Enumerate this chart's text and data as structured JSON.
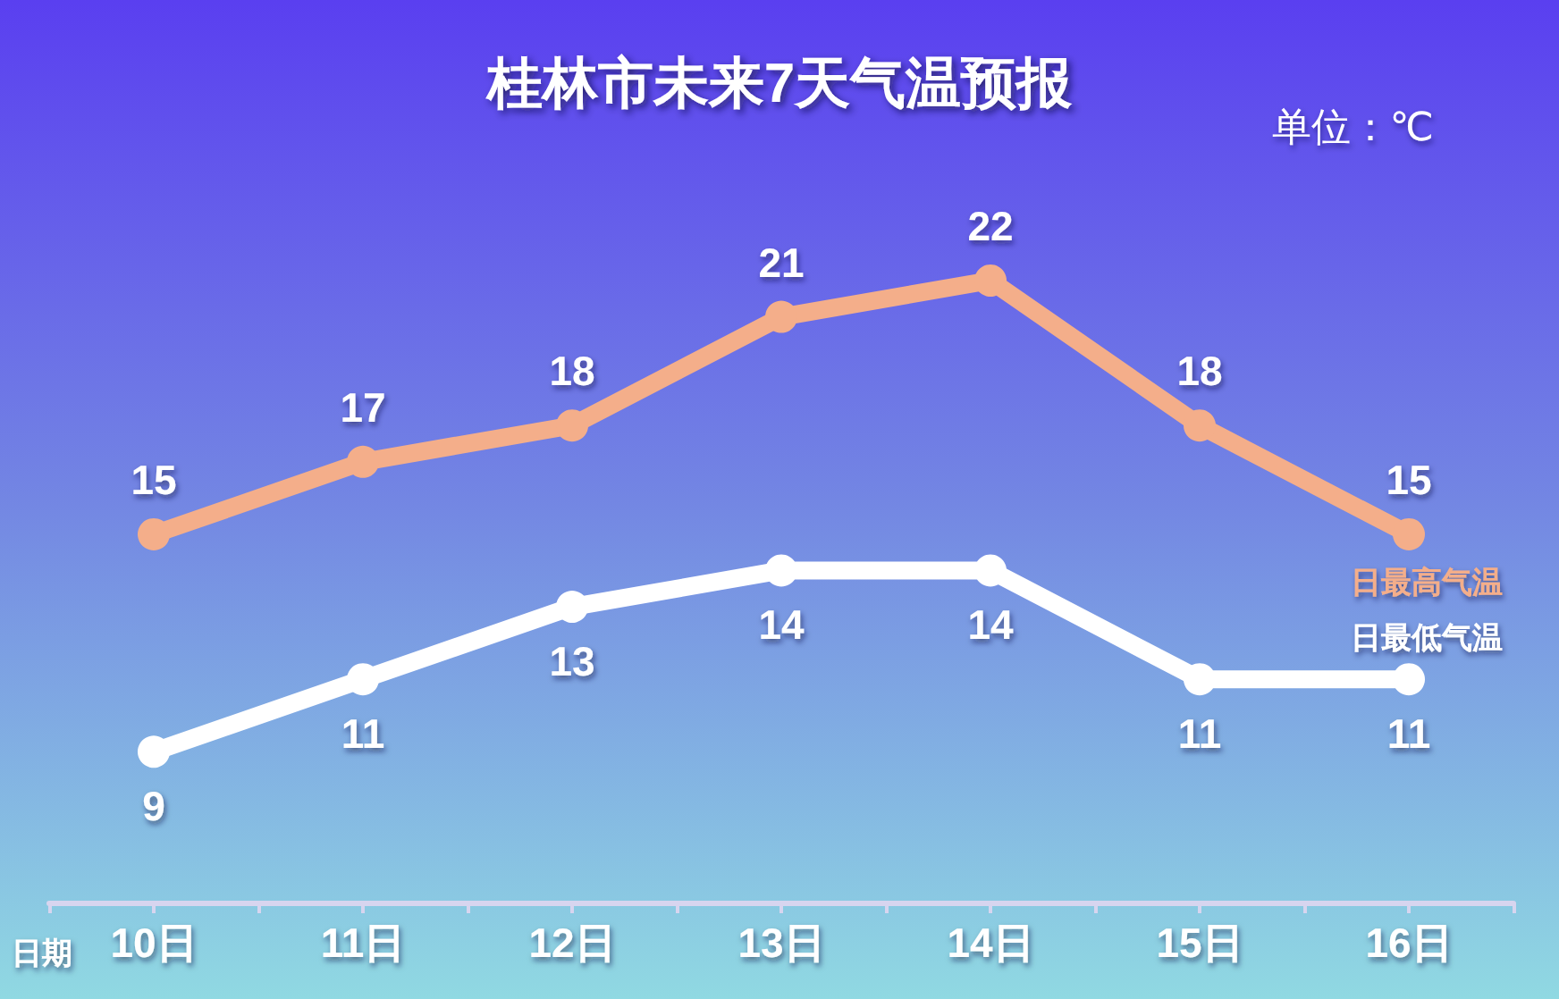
{
  "chart_data": {
    "type": "line",
    "title": "桂林市未来7天气温预报",
    "xlabel": "日期",
    "annotations": [
      "单位：℃"
    ],
    "categories": [
      "10日",
      "11日",
      "12日",
      "13日",
      "14日",
      "15日",
      "16日"
    ],
    "series": [
      {
        "name": "日最高气温",
        "color": "#f4ae8a",
        "values": [
          15,
          17,
          18,
          21,
          22,
          18,
          15
        ]
      },
      {
        "name": "日最低气温",
        "color": "#ffffff",
        "values": [
          9,
          11,
          13,
          14,
          14,
          11,
          11
        ]
      }
    ],
    "data_labels": true,
    "grid": false,
    "marker": "circle",
    "tick_labels": "x"
  }
}
